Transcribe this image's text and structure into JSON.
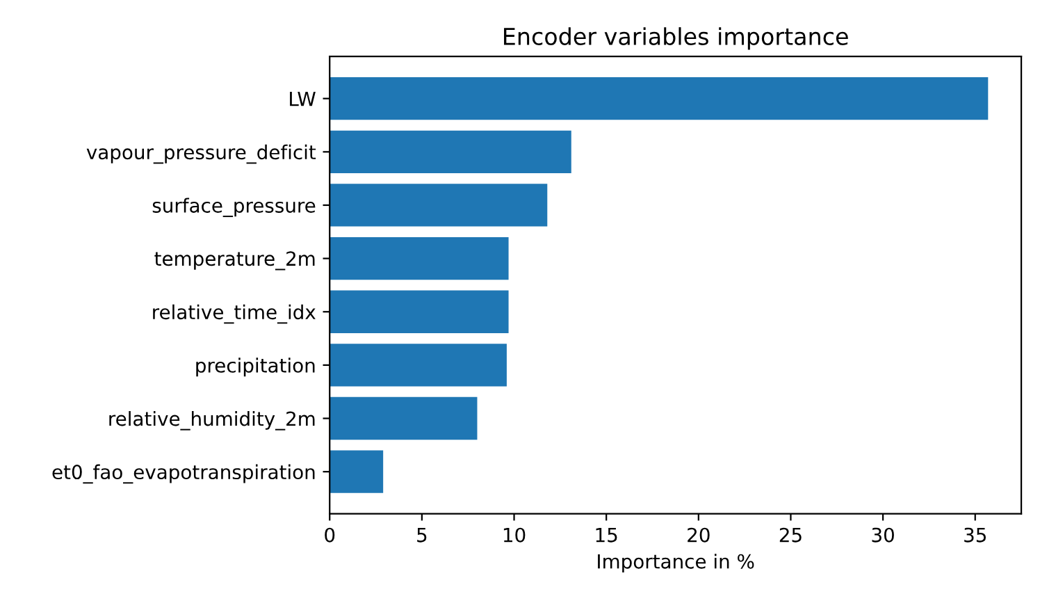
{
  "chart_data": {
    "type": "bar",
    "orientation": "horizontal",
    "title": "Encoder variables importance",
    "xlabel": "Importance in %",
    "categories": [
      "LW",
      "vapour_pressure_deficit",
      "surface_pressure",
      "temperature_2m",
      "relative_time_idx",
      "precipitation",
      "relative_humidity_2m",
      "et0_fao_evapotranspiration"
    ],
    "values": [
      35.7,
      13.1,
      11.8,
      9.7,
      9.7,
      9.6,
      8.0,
      2.9
    ],
    "color": "#1f77b4",
    "xlim": [
      0,
      37.5
    ],
    "xticks": [
      0,
      5,
      10,
      15,
      20,
      25,
      30,
      35
    ],
    "grid": false
  }
}
